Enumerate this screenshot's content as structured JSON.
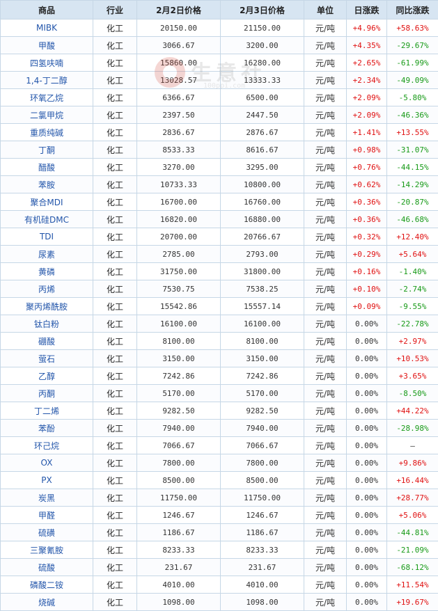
{
  "headers": [
    "商品",
    "行业",
    "2月2日价格",
    "2月3日价格",
    "单位",
    "日涨跌",
    "同比涨跌"
  ],
  "rows": [
    {
      "name": "MIBK",
      "industry": "化工",
      "p1": "20150.00",
      "p2": "21150.00",
      "unit": "元/吨",
      "daily": "+4.96%",
      "yoy": "+58.63%"
    },
    {
      "name": "甲酸",
      "industry": "化工",
      "p1": "3066.67",
      "p2": "3200.00",
      "unit": "元/吨",
      "daily": "+4.35%",
      "yoy": "-29.67%"
    },
    {
      "name": "四氢呋喃",
      "industry": "化工",
      "p1": "15860.00",
      "p2": "16280.00",
      "unit": "元/吨",
      "daily": "+2.65%",
      "yoy": "-61.99%"
    },
    {
      "name": "1,4-丁二醇",
      "industry": "化工",
      "p1": "13028.57",
      "p2": "13333.33",
      "unit": "元/吨",
      "daily": "+2.34%",
      "yoy": "-49.09%"
    },
    {
      "name": "环氧乙烷",
      "industry": "化工",
      "p1": "6366.67",
      "p2": "6500.00",
      "unit": "元/吨",
      "daily": "+2.09%",
      "yoy": "-5.80%"
    },
    {
      "name": "二氯甲烷",
      "industry": "化工",
      "p1": "2397.50",
      "p2": "2447.50",
      "unit": "元/吨",
      "daily": "+2.09%",
      "yoy": "-46.36%"
    },
    {
      "name": "重质纯碱",
      "industry": "化工",
      "p1": "2836.67",
      "p2": "2876.67",
      "unit": "元/吨",
      "daily": "+1.41%",
      "yoy": "+13.55%"
    },
    {
      "name": "丁酮",
      "industry": "化工",
      "p1": "8533.33",
      "p2": "8616.67",
      "unit": "元/吨",
      "daily": "+0.98%",
      "yoy": "-31.07%"
    },
    {
      "name": "醋酸",
      "industry": "化工",
      "p1": "3270.00",
      "p2": "3295.00",
      "unit": "元/吨",
      "daily": "+0.76%",
      "yoy": "-44.15%"
    },
    {
      "name": "苯胺",
      "industry": "化工",
      "p1": "10733.33",
      "p2": "10800.00",
      "unit": "元/吨",
      "daily": "+0.62%",
      "yoy": "-14.29%"
    },
    {
      "name": "聚合MDI",
      "industry": "化工",
      "p1": "16700.00",
      "p2": "16760.00",
      "unit": "元/吨",
      "daily": "+0.36%",
      "yoy": "-20.87%"
    },
    {
      "name": "有机硅DMC",
      "industry": "化工",
      "p1": "16820.00",
      "p2": "16880.00",
      "unit": "元/吨",
      "daily": "+0.36%",
      "yoy": "-46.68%"
    },
    {
      "name": "TDI",
      "industry": "化工",
      "p1": "20700.00",
      "p2": "20766.67",
      "unit": "元/吨",
      "daily": "+0.32%",
      "yoy": "+12.40%"
    },
    {
      "name": "尿素",
      "industry": "化工",
      "p1": "2785.00",
      "p2": "2793.00",
      "unit": "元/吨",
      "daily": "+0.29%",
      "yoy": "+5.64%"
    },
    {
      "name": "黄磷",
      "industry": "化工",
      "p1": "31750.00",
      "p2": "31800.00",
      "unit": "元/吨",
      "daily": "+0.16%",
      "yoy": "-1.40%"
    },
    {
      "name": "丙烯",
      "industry": "化工",
      "p1": "7530.75",
      "p2": "7538.25",
      "unit": "元/吨",
      "daily": "+0.10%",
      "yoy": "-2.74%"
    },
    {
      "name": "聚丙烯酰胺",
      "industry": "化工",
      "p1": "15542.86",
      "p2": "15557.14",
      "unit": "元/吨",
      "daily": "+0.09%",
      "yoy": "-9.55%"
    },
    {
      "name": "钛白粉",
      "industry": "化工",
      "p1": "16100.00",
      "p2": "16100.00",
      "unit": "元/吨",
      "daily": "0.00%",
      "yoy": "-22.78%"
    },
    {
      "name": "硼酸",
      "industry": "化工",
      "p1": "8100.00",
      "p2": "8100.00",
      "unit": "元/吨",
      "daily": "0.00%",
      "yoy": "+2.97%"
    },
    {
      "name": "萤石",
      "industry": "化工",
      "p1": "3150.00",
      "p2": "3150.00",
      "unit": "元/吨",
      "daily": "0.00%",
      "yoy": "+10.53%"
    },
    {
      "name": "乙醇",
      "industry": "化工",
      "p1": "7242.86",
      "p2": "7242.86",
      "unit": "元/吨",
      "daily": "0.00%",
      "yoy": "+3.65%"
    },
    {
      "name": "丙酮",
      "industry": "化工",
      "p1": "5170.00",
      "p2": "5170.00",
      "unit": "元/吨",
      "daily": "0.00%",
      "yoy": "-8.50%"
    },
    {
      "name": "丁二烯",
      "industry": "化工",
      "p1": "9282.50",
      "p2": "9282.50",
      "unit": "元/吨",
      "daily": "0.00%",
      "yoy": "+44.22%"
    },
    {
      "name": "苯酚",
      "industry": "化工",
      "p1": "7940.00",
      "p2": "7940.00",
      "unit": "元/吨",
      "daily": "0.00%",
      "yoy": "-28.98%"
    },
    {
      "name": "环己烷",
      "industry": "化工",
      "p1": "7066.67",
      "p2": "7066.67",
      "unit": "元/吨",
      "daily": "0.00%",
      "yoy": "—"
    },
    {
      "name": "OX",
      "industry": "化工",
      "p1": "7800.00",
      "p2": "7800.00",
      "unit": "元/吨",
      "daily": "0.00%",
      "yoy": "+9.86%"
    },
    {
      "name": "PX",
      "industry": "化工",
      "p1": "8500.00",
      "p2": "8500.00",
      "unit": "元/吨",
      "daily": "0.00%",
      "yoy": "+16.44%"
    },
    {
      "name": "炭黑",
      "industry": "化工",
      "p1": "11750.00",
      "p2": "11750.00",
      "unit": "元/吨",
      "daily": "0.00%",
      "yoy": "+28.77%"
    },
    {
      "name": "甲醛",
      "industry": "化工",
      "p1": "1246.67",
      "p2": "1246.67",
      "unit": "元/吨",
      "daily": "0.00%",
      "yoy": "+5.06%"
    },
    {
      "name": "硫磺",
      "industry": "化工",
      "p1": "1186.67",
      "p2": "1186.67",
      "unit": "元/吨",
      "daily": "0.00%",
      "yoy": "-44.81%"
    },
    {
      "name": "三聚氰胺",
      "industry": "化工",
      "p1": "8233.33",
      "p2": "8233.33",
      "unit": "元/吨",
      "daily": "0.00%",
      "yoy": "-21.09%"
    },
    {
      "name": "硫酸",
      "industry": "化工",
      "p1": "231.67",
      "p2": "231.67",
      "unit": "元/吨",
      "daily": "0.00%",
      "yoy": "-68.12%"
    },
    {
      "name": "磷酸二铵",
      "industry": "化工",
      "p1": "4010.00",
      "p2": "4010.00",
      "unit": "元/吨",
      "daily": "0.00%",
      "yoy": "+11.54%"
    },
    {
      "name": "烧碱",
      "industry": "化工",
      "p1": "1098.00",
      "p2": "1098.00",
      "unit": "元/吨",
      "daily": "0.00%",
      "yoy": "+19.67%"
    }
  ],
  "watermark": {
    "text": "生意社",
    "url": "100ppi.com"
  },
  "colors": {
    "up": "#e01010",
    "down": "#179a17",
    "header_bg": "#d7e5f2",
    "border": "#c6d7e6",
    "link": "#2255aa"
  }
}
